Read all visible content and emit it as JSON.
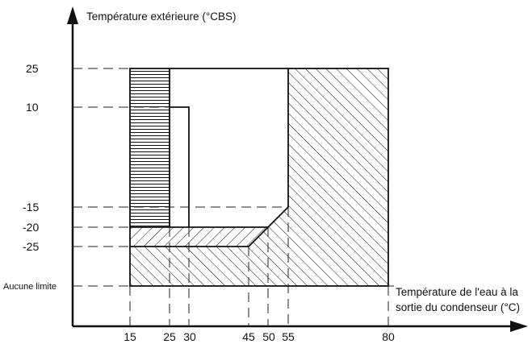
{
  "y_axis_title": "Température extérieure (°CBS)",
  "x_axis_title_line1": "Température de l'eau à la",
  "x_axis_title_line2": "sortie du condenseur (°C)",
  "y_limit_label": "Aucune limite",
  "y_ticks": [
    "25",
    "10",
    "-15",
    "-20",
    "-25"
  ],
  "x_ticks": [
    "15",
    "25",
    "30",
    "45",
    "50",
    "55",
    "80"
  ],
  "colors": {
    "line": "#111111",
    "background": "#ffffff"
  }
}
